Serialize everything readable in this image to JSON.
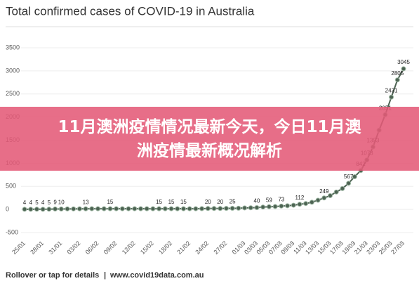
{
  "banner": "11月澳洲疫情情况最新今天，今日11月澳洲疫情最新概况解析",
  "chart_data": {
    "type": "line",
    "title": "Total confirmed cases of COVID-19 in Australia",
    "footer": "Rollover or tap for details",
    "source": "www.covid19data.com.au",
    "categories": [
      "25/01",
      null,
      null,
      "28/01",
      null,
      null,
      "31/01",
      null,
      null,
      "03/02",
      null,
      null,
      "06/02",
      null,
      null,
      "09/02",
      null,
      null,
      "12/02",
      null,
      null,
      "15/02",
      null,
      null,
      "18/02",
      null,
      null,
      "21/02",
      null,
      null,
      "24/02",
      null,
      null,
      "27/02",
      null,
      null,
      "01/03",
      null,
      "03/03",
      null,
      "05/03",
      null,
      "07/03",
      null,
      "09/03",
      null,
      "11/03",
      null,
      "13/03",
      null,
      "15/03",
      null,
      "17/03",
      null,
      "19/03",
      null,
      "21/03",
      null,
      "23/03",
      null,
      "25/03",
      null,
      "27/03"
    ],
    "values": [
      4,
      4,
      5,
      4,
      5,
      9,
      10,
      12,
      12,
      13,
      13,
      15,
      15,
      15,
      15,
      15,
      15,
      15,
      15,
      15,
      15,
      15,
      15,
      15,
      15,
      15,
      15,
      15,
      15,
      17,
      20,
      20,
      20,
      23,
      25,
      27,
      33,
      36,
      40,
      52,
      59,
      63,
      73,
      80,
      92,
      112,
      128,
      156,
      200,
      249,
      298,
      377,
      452,
      567,
      709,
      842,
      1073,
      1353,
      1716,
      2051,
      2431,
      2805,
      3045
    ],
    "value_labels": [
      "4",
      "4",
      "5",
      "4",
      "5",
      "9",
      "10",
      null,
      null,
      null,
      "13",
      null,
      null,
      null,
      "15",
      null,
      null,
      null,
      null,
      null,
      null,
      null,
      "15",
      null,
      "15",
      null,
      "15",
      null,
      null,
      null,
      "20",
      null,
      "20",
      null,
      "25",
      null,
      null,
      null,
      "40",
      null,
      "59",
      null,
      "73",
      null,
      null,
      "112",
      null,
      null,
      null,
      "249",
      null,
      null,
      null,
      "567",
      null,
      "842",
      "1073",
      "1353",
      null,
      "2051",
      "2431",
      "2805",
      "3045"
    ],
    "color": "#4d6353",
    "ylim": [
      -500,
      3500
    ],
    "yticks": [
      -500,
      0,
      500,
      1000,
      1500,
      2000,
      2500,
      3000,
      3500
    ],
    "grid": true
  }
}
